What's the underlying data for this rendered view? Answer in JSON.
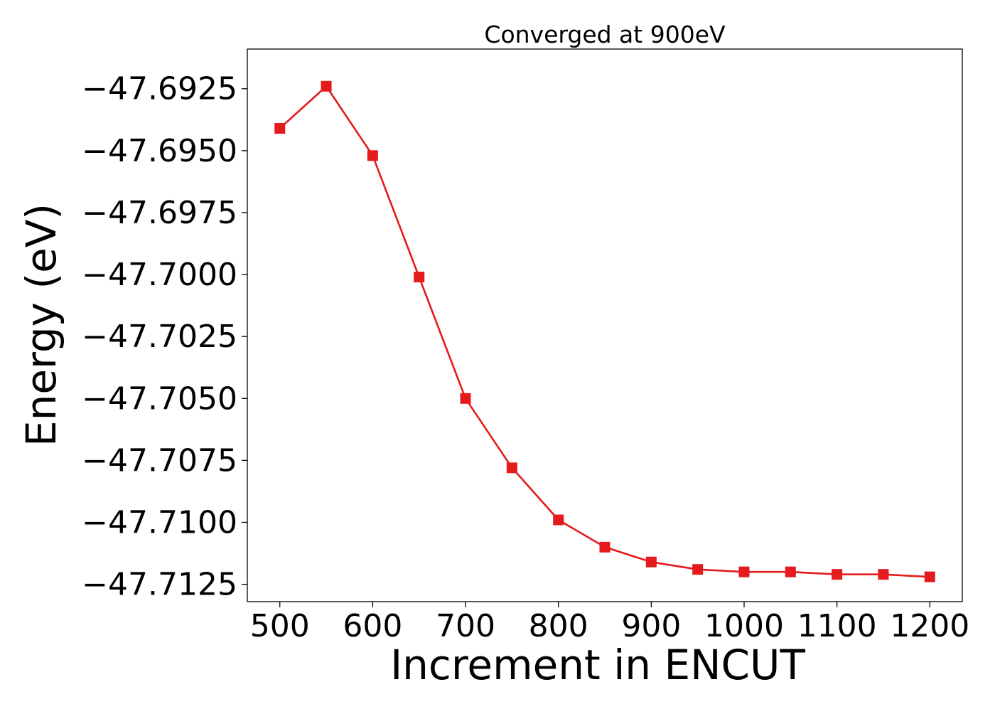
{
  "chart_data": {
    "type": "line",
    "title": "Converged at 900eV",
    "xlabel": "Increment in ENCUT",
    "ylabel": "Energy (eV)",
    "xlim": [
      465,
      1235
    ],
    "ylim": [
      -47.7132,
      -47.6909
    ],
    "xticks": [
      500,
      600,
      700,
      800,
      900,
      1000,
      1100,
      1200
    ],
    "yticks": [
      -47.6925,
      -47.695,
      -47.6975,
      -47.7,
      -47.7025,
      -47.705,
      -47.7075,
      -47.71,
      -47.7125
    ],
    "ytick_labels": [
      "−47.6925",
      "−47.6950",
      "−47.6975",
      "−47.7000",
      "−47.7025",
      "−47.7050",
      "−47.7075",
      "−47.7100",
      "−47.7125"
    ],
    "grid": false,
    "series": [
      {
        "color": "#e41a1c",
        "marker": "square",
        "x": [
          500,
          550,
          600,
          650,
          700,
          750,
          800,
          850,
          900,
          950,
          1000,
          1050,
          1100,
          1150,
          1200
        ],
        "y": [
          -47.6941,
          -47.6924,
          -47.6952,
          -47.7001,
          -47.705,
          -47.7078,
          -47.7099,
          -47.711,
          -47.7116,
          -47.7119,
          -47.712,
          -47.712,
          -47.7121,
          -47.7121,
          -47.7122
        ]
      }
    ]
  }
}
